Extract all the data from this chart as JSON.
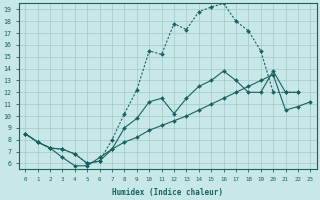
{
  "xlabel": "Humidex (Indice chaleur)",
  "background_color": "#c8e8e8",
  "grid_color": "#a0c8c8",
  "line_color": "#1a6060",
  "xlim": [
    -0.5,
    23.5
  ],
  "ylim": [
    5.5,
    19.5
  ],
  "xticks": [
    0,
    1,
    2,
    3,
    4,
    5,
    6,
    7,
    8,
    9,
    10,
    11,
    12,
    13,
    14,
    15,
    16,
    17,
    18,
    19,
    20,
    21,
    22,
    23
  ],
  "yticks": [
    6,
    7,
    8,
    9,
    10,
    11,
    12,
    13,
    14,
    15,
    16,
    17,
    18,
    19
  ],
  "curve_top_x": [
    0,
    1,
    2,
    3,
    4,
    5,
    6,
    7,
    8,
    9,
    10,
    11,
    12,
    13,
    14,
    15,
    16,
    17,
    18,
    19,
    20,
    21,
    22
  ],
  "curve_top_y": [
    8.5,
    7.8,
    7.3,
    7.2,
    6.8,
    6.0,
    6.2,
    8.0,
    10.2,
    12.2,
    15.5,
    15.2,
    17.8,
    17.3,
    18.8,
    19.2,
    19.5,
    18.0,
    17.2,
    15.5,
    12.0,
    12.0,
    12.0
  ],
  "curve_mid_x": [
    0,
    1,
    2,
    3,
    4,
    5,
    6,
    7,
    8,
    9,
    10,
    11,
    12,
    13,
    14,
    15,
    16,
    17,
    18,
    19,
    20,
    21,
    22
  ],
  "curve_mid_y": [
    8.5,
    7.8,
    7.3,
    7.2,
    6.8,
    6.0,
    6.2,
    7.2,
    9.0,
    9.8,
    11.2,
    11.5,
    10.2,
    11.5,
    12.5,
    13.0,
    13.8,
    13.0,
    12.0,
    12.0,
    13.8,
    12.0,
    12.0
  ],
  "curve_bot_x": [
    0,
    1,
    2,
    3,
    4,
    5,
    6,
    7,
    8,
    9,
    10,
    11,
    12,
    13,
    14,
    15,
    16,
    17,
    18,
    19,
    20,
    21,
    22,
    23
  ],
  "curve_bot_y": [
    8.5,
    7.8,
    7.3,
    6.5,
    5.8,
    5.8,
    6.5,
    7.2,
    7.8,
    8.2,
    8.8,
    9.2,
    9.6,
    10.0,
    10.5,
    11.0,
    11.5,
    12.0,
    12.5,
    13.0,
    13.5,
    10.5,
    10.8,
    11.2
  ]
}
